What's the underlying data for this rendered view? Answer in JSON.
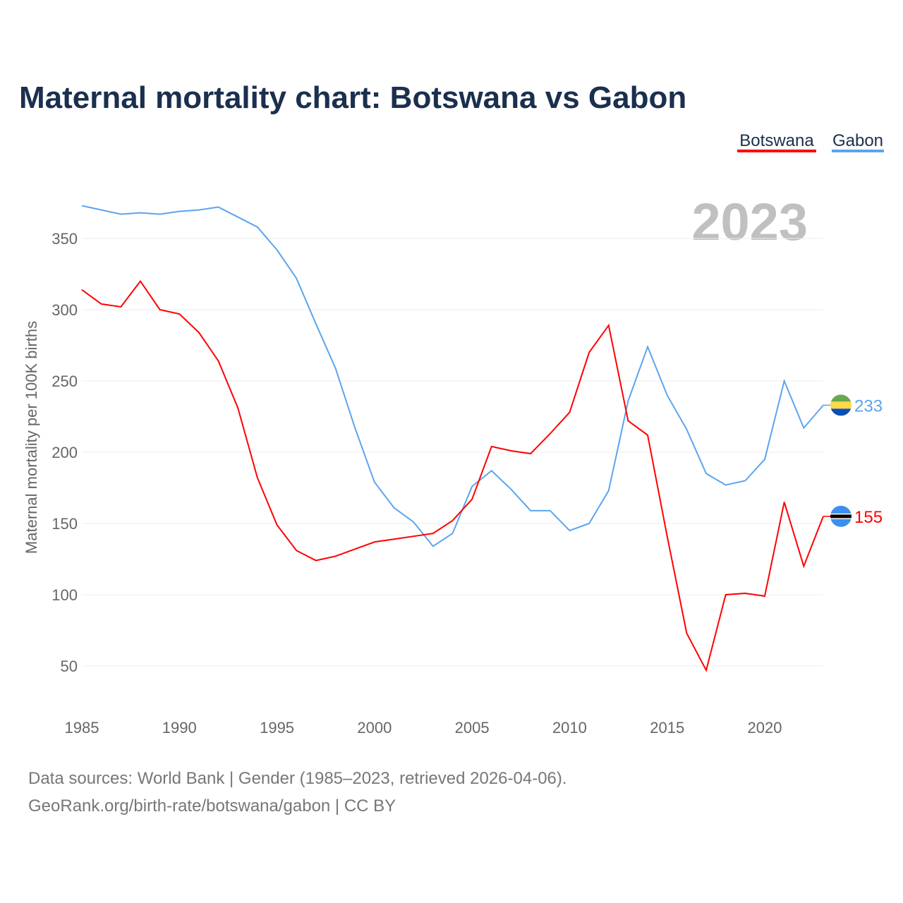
{
  "chart_data": {
    "type": "line",
    "title": "Maternal mortality chart: Botswana vs Gabon",
    "ylabel": "Maternal mortality per 100K births",
    "xlabel": "",
    "year_label": "2023",
    "xlim": [
      1985,
      2023
    ],
    "ylim": [
      50,
      350
    ],
    "x_ticks": [
      1985,
      1990,
      1995,
      2000,
      2005,
      2010,
      2015,
      2020
    ],
    "y_ticks": [
      50,
      100,
      150,
      200,
      250,
      300,
      350
    ],
    "grid": true,
    "legend_position": "top-right",
    "x": [
      1985,
      1986,
      1987,
      1988,
      1989,
      1990,
      1991,
      1992,
      1993,
      1994,
      1995,
      1996,
      1997,
      1998,
      1999,
      2000,
      2001,
      2002,
      2003,
      2004,
      2005,
      2006,
      2007,
      2008,
      2009,
      2010,
      2011,
      2012,
      2013,
      2014,
      2015,
      2016,
      2017,
      2018,
      2019,
      2020,
      2021,
      2022,
      2023
    ],
    "series": [
      {
        "name": "Botswana",
        "color": "#ff0000",
        "end_label": "155",
        "values": [
          314,
          304,
          302,
          320,
          300,
          297,
          284,
          264,
          231,
          182,
          149,
          131,
          124,
          127,
          132,
          137,
          139,
          141,
          143,
          152,
          167,
          204,
          201,
          199,
          213,
          228,
          270,
          289,
          222,
          212,
          141,
          73,
          47,
          100,
          101,
          99,
          165,
          120,
          155
        ]
      },
      {
        "name": "Gabon",
        "color": "#5aa5ee",
        "end_label": "233",
        "values": [
          373,
          370,
          367,
          368,
          367,
          369,
          370,
          372,
          365,
          358,
          342,
          322,
          290,
          259,
          217,
          179,
          161,
          151,
          134,
          143,
          176,
          187,
          174,
          159,
          159,
          145,
          150,
          173,
          236,
          274,
          240,
          216,
          185,
          177,
          180,
          195,
          250,
          217,
          233
        ]
      }
    ]
  },
  "footer": {
    "line1": "Data sources: World Bank | Gender (1985–2023, retrieved 2026-04-06).",
    "line2": "GeoRank.org/birth-rate/botswana/gabon | CC BY"
  }
}
